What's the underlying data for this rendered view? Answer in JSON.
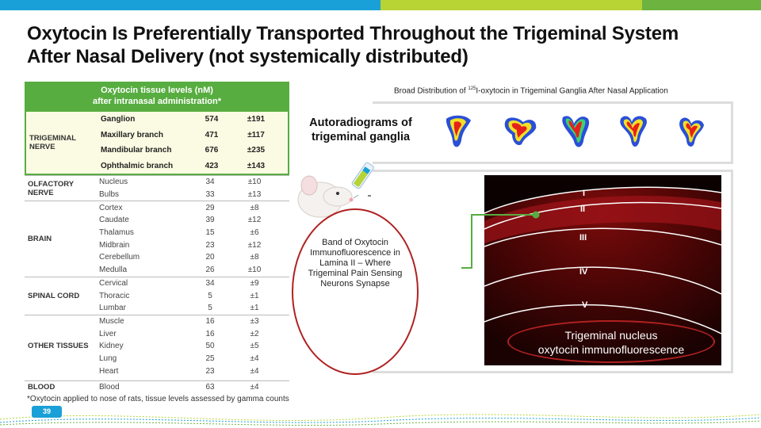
{
  "slide": {
    "title": "Oxytocin Is Preferentially Transported Throughout the Trigeminal System After Nasal Delivery (not systemically distributed)",
    "page_number": "39",
    "footnote": "*Oxytocin applied to nose of rats, tissue levels assessed by gamma counts"
  },
  "table": {
    "header_line1": "Oxytocin tissue levels (nM)",
    "header_line2": "after intranasal administration*",
    "groups": [
      {
        "label": "TRIGEMINAL NERVE",
        "highlight": true,
        "rows": [
          {
            "tissue": "Ganglion",
            "level": "574",
            "sd": "±191"
          },
          {
            "tissue": "Maxillary branch",
            "level": "471",
            "sd": "±117"
          },
          {
            "tissue": "Mandibular branch",
            "level": "676",
            "sd": "±235"
          },
          {
            "tissue": "Ophthalmic branch",
            "level": "423",
            "sd": "±143"
          }
        ]
      },
      {
        "label": "OLFACTORY NERVE",
        "rows": [
          {
            "tissue": "Nucleus",
            "level": "34",
            "sd": "±10"
          },
          {
            "tissue": "Bulbs",
            "level": "33",
            "sd": "±13"
          }
        ]
      },
      {
        "label": "BRAIN",
        "rows": [
          {
            "tissue": "Cortex",
            "level": "29",
            "sd": "±8"
          },
          {
            "tissue": "Caudate",
            "level": "39",
            "sd": "±12"
          },
          {
            "tissue": "Thalamus",
            "level": "15",
            "sd": "±6"
          },
          {
            "tissue": "Midbrain",
            "level": "23",
            "sd": "±12"
          },
          {
            "tissue": "Cerebellum",
            "level": "20",
            "sd": "±8"
          },
          {
            "tissue": "Medulla",
            "level": "26",
            "sd": "±10"
          }
        ]
      },
      {
        "label": "SPINAL CORD",
        "rows": [
          {
            "tissue": "Cervical",
            "level": "34",
            "sd": "±9"
          },
          {
            "tissue": "Thoracic",
            "level": "5",
            "sd": "±1"
          },
          {
            "tissue": "Lumbar",
            "level": "5",
            "sd": "±1"
          }
        ]
      },
      {
        "label": "OTHER TISSUES",
        "rows": [
          {
            "tissue": "Muscle",
            "level": "16",
            "sd": "±3"
          },
          {
            "tissue": "Liver",
            "level": "16",
            "sd": "±2"
          },
          {
            "tissue": "Kidney",
            "level": "50",
            "sd": "±5"
          },
          {
            "tissue": "Lung",
            "level": "25",
            "sd": "±4"
          },
          {
            "tissue": "Heart",
            "level": "23",
            "sd": "±4"
          }
        ]
      },
      {
        "label": "BLOOD",
        "rows": [
          {
            "tissue": "Blood",
            "level": "63",
            "sd": "±4"
          }
        ]
      }
    ]
  },
  "ganglia": {
    "caption_pre": "Broad Distribution of ",
    "caption_sup": "125",
    "caption_post": "I-oxytocin  in Trigeminal Ganglia After Nasal Application",
    "label": "Autoradiograms of trigeminal ganglia"
  },
  "micrograph": {
    "laminae": [
      "I",
      "II",
      "III",
      "IV",
      "V"
    ],
    "caption_line1": "Trigeminal nucleus",
    "caption_line2": "oxytocin  immunofluorescence"
  },
  "band_note": "Band of Oxytocin Immunofluorescence in Lamina II – Where Trigeminal Pain Sensing Neurons Synapse",
  "colors": {
    "blue": "#1aa0d8",
    "green": "#57ad40",
    "lime": "#b7d334",
    "red_oval": "#b02121"
  }
}
